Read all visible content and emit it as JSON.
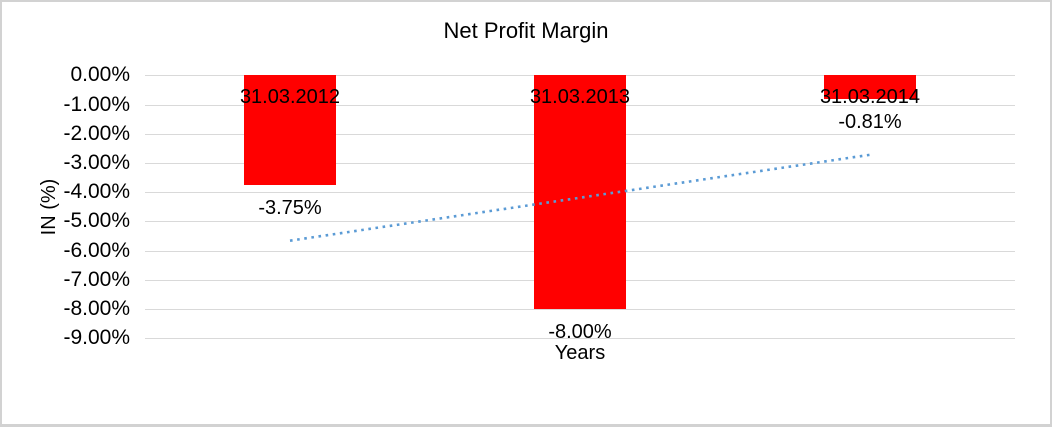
{
  "chart": {
    "title": "Net Profit Margin",
    "x_axis_title": "Years",
    "y_axis_title": "IN (%)"
  },
  "chart_data": {
    "type": "bar",
    "title": "Net Profit Margin",
    "xlabel": "Years",
    "ylabel": "IN (%)",
    "categories": [
      "31.03.2012",
      "31.03.2013",
      "31.03.2014"
    ],
    "values": [
      -3.75,
      -8.0,
      -0.81
    ],
    "data_labels": [
      "-3.75%",
      "-8.00%",
      "-0.81%"
    ],
    "ylim": [
      -9,
      0
    ],
    "ytick_labels": [
      "0.00%",
      "-1.00%",
      "-2.00%",
      "-3.00%",
      "-4.00%",
      "-5.00%",
      "-6.00%",
      "-7.00%",
      "-8.00%",
      "-9.00%"
    ],
    "grid": true,
    "legend": "none",
    "bar_color": "#FF0000",
    "gridline_color": "#D9D9D9",
    "trendline": {
      "type": "linear",
      "style": "dotted",
      "color": "#5B9BD5",
      "start_value": -5.66,
      "end_value": -2.72
    }
  }
}
